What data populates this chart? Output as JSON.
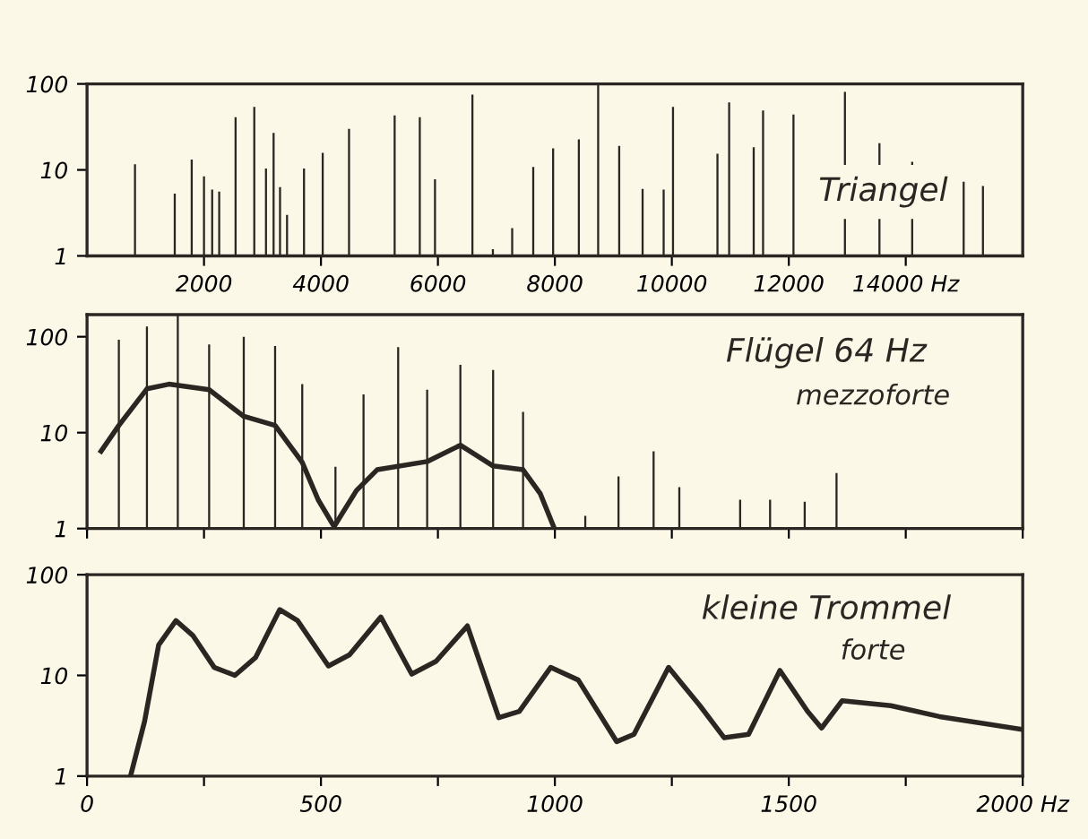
{
  "chart_data": [
    {
      "type": "bar",
      "title": "Triangel",
      "log": "y",
      "grid": false,
      "xlim": [
        0,
        16000
      ],
      "xticks": [
        2000,
        4000,
        6000,
        8000,
        10000,
        12000,
        {
          "value": 14000,
          "label": "14000 Hz"
        }
      ],
      "ylim": [
        1,
        100
      ],
      "yticks": [
        1,
        10,
        100
      ],
      "series": [
        {
          "color": "#2b2622",
          "x": [
            820,
            1500,
            1790,
            2000,
            2140,
            2260,
            2540,
            2860,
            3060,
            3190,
            3300,
            3420,
            3710,
            4030,
            4480,
            5260,
            5690,
            5950,
            6590,
            6940,
            7270,
            7630,
            7970,
            8410,
            8740,
            9100,
            9500,
            9860,
            10020,
            10780,
            10980,
            11400,
            11560,
            12080,
            12960,
            13550,
            14110,
            14990,
            15320
          ],
          "values": [
            11.6,
            5.3,
            13.2,
            8.4,
            5.9,
            5.6,
            41,
            54,
            10.4,
            27,
            6.3,
            3.0,
            10.4,
            15.8,
            30,
            43,
            41,
            7.8,
            75,
            1.2,
            2.1,
            10.8,
            17.8,
            22.6,
            100,
            19,
            6.0,
            5.9,
            54,
            15.4,
            61,
            18.3,
            49,
            44,
            81,
            20.4,
            12.4,
            7.3,
            6.5
          ]
        }
      ]
    },
    {
      "type": "bar",
      "title": "Flügel 64 Hz",
      "subtitle": "mezzoforte",
      "log": "y",
      "grid": false,
      "tick_labels": "y",
      "xlim": [
        0,
        2000
      ],
      "xticks": [
        0,
        250,
        500,
        750,
        1000,
        1250,
        1500,
        1750,
        2000
      ],
      "ylim": [
        1,
        170
      ],
      "yticks": [
        1,
        10,
        100
      ],
      "series": [
        {
          "color": "#2b2622",
          "x": [
            68,
            128,
            194,
            261,
            335,
            402,
            460,
            531,
            591,
            665,
            727,
            798,
            868,
            932,
            1065,
            1136,
            1211,
            1266,
            1396,
            1460,
            1534,
            1602
          ],
          "values": [
            93,
            128,
            167,
            83,
            100,
            80,
            32,
            4.4,
            25,
            78,
            28,
            51,
            45,
            16.5,
            1.36,
            3.5,
            6.4,
            2.7,
            2.0,
            2.0,
            1.9,
            3.8
          ]
        },
        {
          "type": "line",
          "color": "#2b2622",
          "x": [
            30,
            68,
            128,
            175,
            261,
            335,
            402,
            460,
            494,
            528,
            576,
            620,
            727,
            798,
            868,
            932,
            969,
            999
          ],
          "values": [
            6.4,
            11.9,
            28.6,
            32,
            28,
            14.8,
            11.9,
            4.9,
            2.0,
            1.05,
            2.5,
            4.1,
            5.0,
            7.4,
            4.5,
            4.1,
            2.3,
            1.0
          ]
        }
      ]
    },
    {
      "type": "line",
      "title": "kleine Trommel",
      "subtitle": "forte",
      "log": "y",
      "grid": false,
      "xlim": [
        0,
        2000
      ],
      "xticks": [
        0,
        {
          "value": 250,
          "label": null
        },
        500,
        {
          "value": 750,
          "label": null
        },
        1000,
        {
          "value": 1250,
          "label": null
        },
        1500,
        {
          "value": 1750,
          "label": null
        },
        {
          "value": 2000,
          "label": "2000 Hz"
        }
      ],
      "ylim": [
        1,
        100
      ],
      "yticks": [
        1,
        10,
        100
      ],
      "series": [
        {
          "color": "#2b2622",
          "x": [
            93,
            123,
            153,
            190,
            226,
            272,
            316,
            360,
            412,
            450,
            516,
            561,
            628,
            694,
            746,
            813,
            880,
            924,
            991,
            1050,
            1132,
            1169,
            1243,
            1310,
            1362,
            1414,
            1481,
            1540,
            1570,
            1614,
            1718,
            1822,
            2000
          ],
          "values": [
            1.0,
            3.5,
            20,
            35,
            25,
            12,
            10,
            15,
            45,
            35,
            12.4,
            16,
            38,
            10.3,
            13.8,
            31,
            3.8,
            4.4,
            12,
            9,
            2.2,
            2.6,
            12,
            5,
            2.4,
            2.6,
            11.2,
            4.4,
            3.0,
            5.6,
            5.0,
            3.9,
            2.9
          ]
        }
      ]
    }
  ]
}
